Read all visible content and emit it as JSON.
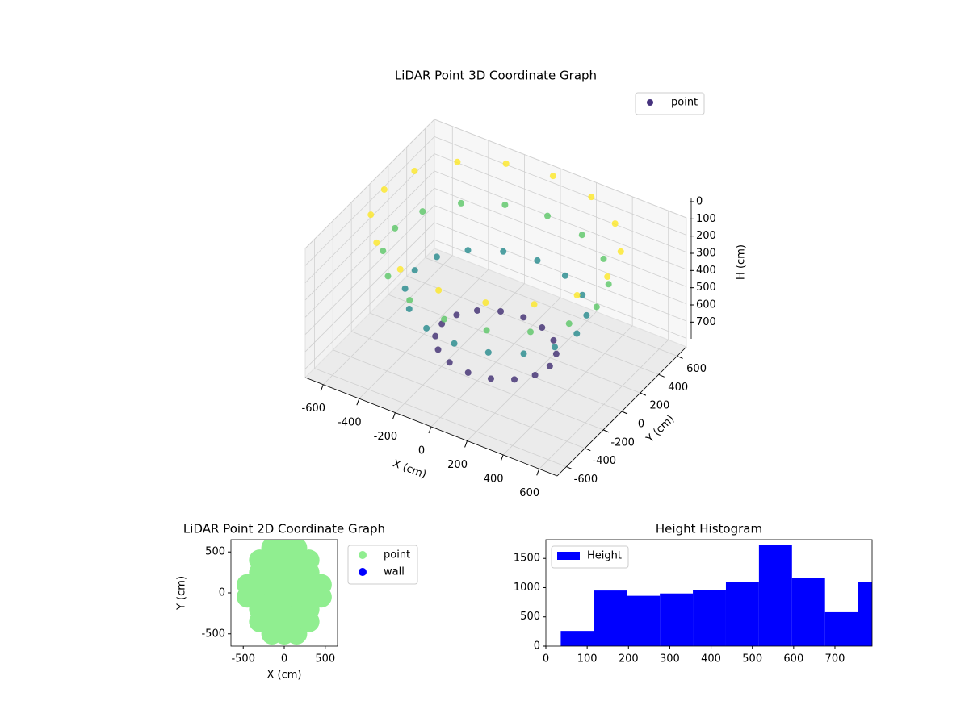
{
  "chart_data": [
    {
      "type": "scatter3d",
      "title": "LiDAR Point 3D Coordinate Graph",
      "xlabel": "X (cm)",
      "ylabel": "Y (cm)",
      "zlabel": "H (cm)",
      "series": [
        {
          "name": "point",
          "color": "#46327e",
          "colormap": "viridis",
          "x": [
            620,
            573,
            438,
            237,
            0,
            -237,
            -438,
            -573,
            -620,
            -573,
            -438,
            -237,
            0,
            237,
            438,
            573,
            560,
            517,
            396,
            214,
            0,
            -214,
            -396,
            -517,
            -560,
            -517,
            -396,
            -214,
            0,
            214,
            396,
            517,
            450,
            416,
            318,
            172,
            0,
            -172,
            -318,
            -416,
            -450,
            -416,
            -318,
            -172,
            0,
            172,
            318,
            416,
            300,
            277,
            212,
            115,
            0,
            -115,
            -212,
            -277,
            -300,
            -277,
            -212,
            -115,
            0,
            115,
            212,
            277
          ],
          "y": [
            0,
            237,
            438,
            573,
            620,
            573,
            438,
            237,
            0,
            -237,
            -438,
            -573,
            -620,
            -573,
            -438,
            -237,
            0,
            214,
            396,
            517,
            560,
            517,
            396,
            214,
            0,
            -214,
            -396,
            -517,
            -560,
            -517,
            -396,
            -214,
            0,
            172,
            318,
            416,
            450,
            416,
            318,
            172,
            0,
            -172,
            -318,
            -416,
            -450,
            -416,
            -318,
            -172,
            0,
            115,
            212,
            277,
            300,
            277,
            212,
            115,
            0,
            -115,
            -212,
            -277,
            -300,
            -277,
            -212,
            -115
          ],
          "h": [
            0,
            0,
            0,
            0,
            0,
            0,
            0,
            0,
            0,
            0,
            0,
            0,
            0,
            0,
            0,
            0,
            200,
            200,
            200,
            200,
            200,
            200,
            200,
            200,
            200,
            200,
            200,
            200,
            200,
            200,
            200,
            200,
            400,
            400,
            400,
            400,
            400,
            400,
            400,
            400,
            400,
            400,
            400,
            400,
            400,
            400,
            400,
            400,
            650,
            650,
            650,
            650,
            650,
            650,
            650,
            650,
            650,
            650,
            650,
            650,
            650,
            650,
            650,
            650
          ]
        }
      ],
      "xlim": [
        -700,
        700
      ],
      "ylim": [
        -700,
        700
      ],
      "zlim": [
        750,
        0
      ],
      "xticks": [
        -600,
        -400,
        -200,
        0,
        200,
        400,
        600
      ],
      "yticks": [
        -600,
        -400,
        -200,
        0,
        200,
        400,
        600
      ],
      "zticks": [
        0,
        100,
        200,
        300,
        400,
        500,
        600,
        700
      ],
      "grid": true,
      "legend": "upper right"
    },
    {
      "type": "scatter",
      "title": "LiDAR Point 2D Coordinate Graph",
      "xlabel": "X (cm)",
      "ylabel": "Y (cm)",
      "series": [
        {
          "name": "point",
          "color": "#90ee90",
          "x": [
            -150,
            0,
            150,
            -300,
            -150,
            0,
            150,
            300,
            -300,
            -150,
            0,
            150,
            300,
            -450,
            -300,
            -150,
            0,
            150,
            300,
            450,
            -450,
            -300,
            -150,
            0,
            150,
            300,
            450,
            -300,
            -150,
            0,
            150,
            300,
            -300,
            -150,
            0,
            150,
            300,
            -150,
            0,
            150
          ],
          "y": [
            -500,
            -500,
            -500,
            -350,
            -350,
            -350,
            -350,
            -350,
            -200,
            -200,
            -200,
            -200,
            -200,
            -50,
            -50,
            -50,
            -50,
            -50,
            -50,
            -50,
            100,
            100,
            100,
            100,
            100,
            100,
            100,
            250,
            250,
            250,
            250,
            250,
            400,
            400,
            400,
            400,
            400,
            550,
            550,
            550
          ]
        },
        {
          "name": "wall",
          "color": "#0000ff",
          "x": [],
          "y": []
        }
      ],
      "xlim": [
        -650,
        650
      ],
      "ylim": [
        -650,
        650
      ],
      "xticks": [
        -500,
        0,
        500
      ],
      "yticks": [
        -500,
        0,
        500
      ],
      "legend": "outside right"
    },
    {
      "type": "histogram",
      "title": "Height Histogram",
      "bins": [
        36,
        116,
        196,
        276,
        356,
        436,
        516,
        596,
        676,
        756,
        836
      ],
      "series": [
        {
          "name": "Height",
          "color": "#0000ff",
          "values": [
            260,
            950,
            860,
            900,
            960,
            1100,
            1730,
            1160,
            580,
            1100
          ]
        }
      ],
      "xlim": [
        0,
        790
      ],
      "ylim": [
        0,
        1820
      ],
      "xticks": [
        0,
        100,
        200,
        300,
        400,
        500,
        600,
        700
      ],
      "yticks": [
        0,
        500,
        1000,
        1500
      ],
      "legend": "upper left"
    }
  ]
}
